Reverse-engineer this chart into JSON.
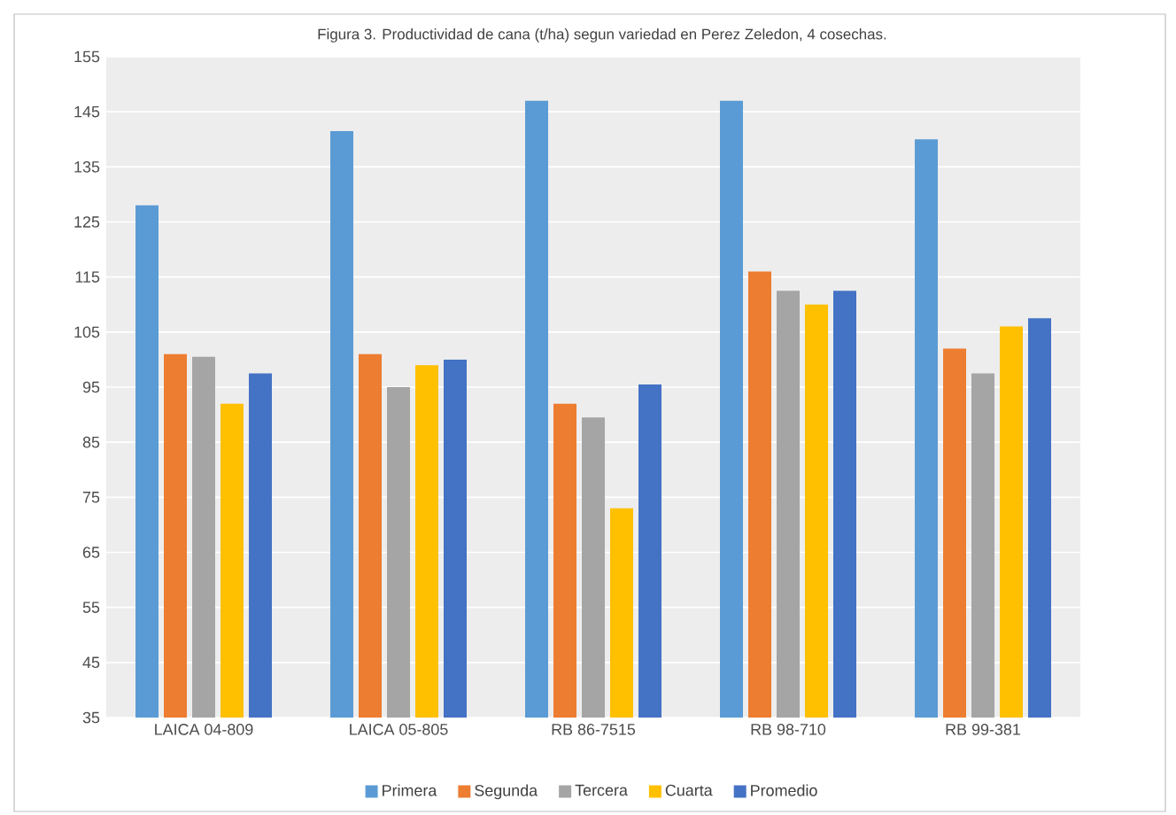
{
  "chart_data": {
    "type": "bar",
    "title": "Figura 3. Productividad de cana (t/ha) segun variedad en Perez Zeledon, 4 cosechas.",
    "categories": [
      "LAICA 04-809",
      "LAICA 05-805",
      "RB 86-7515",
      "RB 98-710",
      "RB 99-381"
    ],
    "series": [
      {
        "name": "Primera",
        "color": "#5b9bd5",
        "values": [
          128,
          141.5,
          147,
          147,
          140
        ]
      },
      {
        "name": "Segunda",
        "color": "#ed7d31",
        "values": [
          101,
          101,
          92,
          116,
          102
        ]
      },
      {
        "name": "Tercera",
        "color": "#a5a5a5",
        "values": [
          100.5,
          95,
          89.5,
          112.5,
          97.5
        ]
      },
      {
        "name": "Cuarta",
        "color": "#ffc000",
        "values": [
          92,
          99,
          73,
          110,
          106
        ]
      },
      {
        "name": "Promedio",
        "color": "#4472c4",
        "values": [
          97.5,
          100,
          95.5,
          112.5,
          107.5
        ]
      }
    ],
    "ylim": [
      35,
      155
    ],
    "yticks": [
      35,
      45,
      55,
      65,
      75,
      85,
      95,
      105,
      115,
      125,
      135,
      145,
      155
    ],
    "grid": "y",
    "legend": "bottom"
  }
}
